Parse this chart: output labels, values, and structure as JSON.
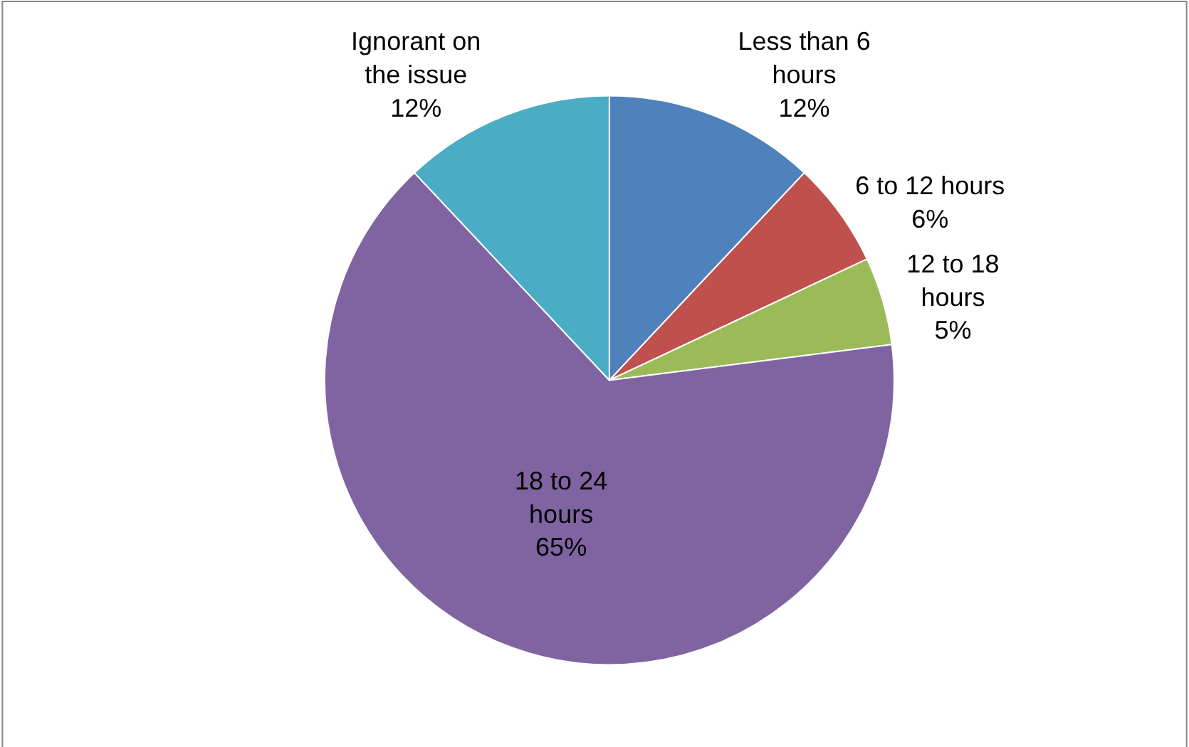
{
  "chart_data": {
    "type": "pie",
    "categories": [
      "Less than 6 hours",
      "6 to 12 hours",
      "12 to 18 hours",
      "18 to 24 hours",
      "Ignorant on the issue"
    ],
    "values": [
      12,
      6,
      5,
      65,
      12
    ],
    "value_labels": [
      "12%",
      "6%",
      "5%",
      "65%",
      "12%"
    ],
    "colors": [
      "#4f81bd",
      "#c0504d",
      "#9bbb59",
      "#8064a2",
      "#4bacc6"
    ],
    "legend": false
  }
}
